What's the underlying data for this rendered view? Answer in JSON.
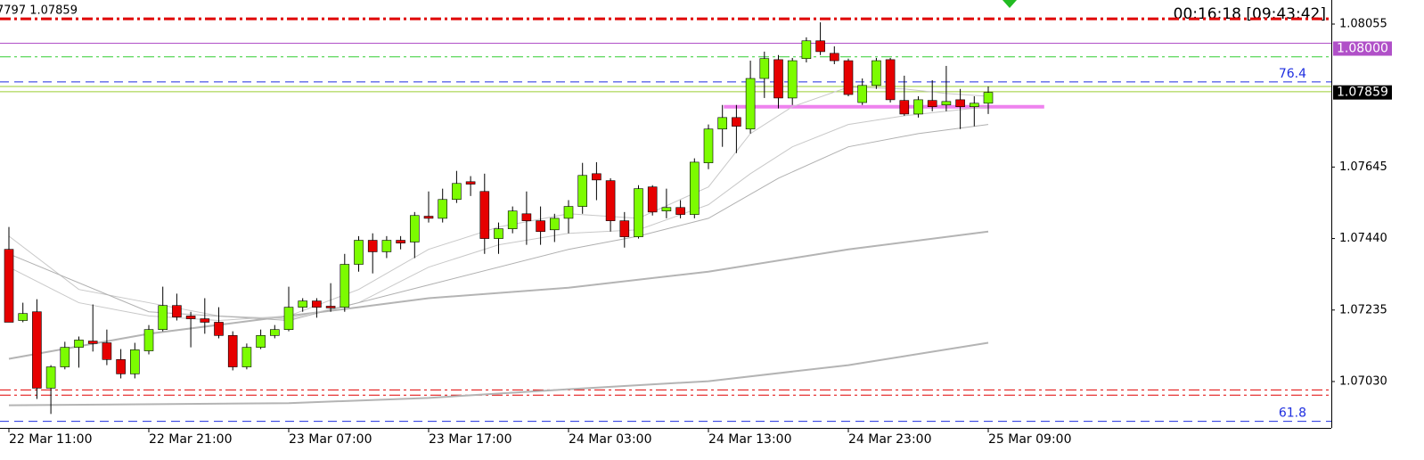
{
  "chart_data": {
    "type": "candlestick",
    "header": "7797 1.07859",
    "clock": "00:16:18 [09:43:42]",
    "categories": [
      "22 Mar 11:00",
      null,
      null,
      null,
      null,
      null,
      null,
      null,
      null,
      null,
      "22 Mar 21:00",
      null,
      null,
      null,
      null,
      null,
      null,
      null,
      null,
      null,
      "23 Mar 07:00",
      null,
      null,
      null,
      null,
      null,
      null,
      null,
      null,
      null,
      "23 Mar 17:00",
      null,
      null,
      null,
      null,
      null,
      null,
      null,
      null,
      null,
      "24 Mar 03:00",
      null,
      null,
      null,
      null,
      null,
      null,
      null,
      null,
      null,
      "24 Mar 13:00",
      null,
      null,
      null,
      null,
      null,
      null,
      null,
      null,
      null,
      "24 Mar 23:00",
      null,
      null,
      null,
      null,
      null,
      null,
      null,
      null,
      null,
      "25 Mar 09:00"
    ],
    "open": [
      1.07409,
      1.07205,
      1.0723,
      1.07011,
      1.07072,
      1.07128,
      1.07146,
      1.07141,
      1.07093,
      1.07052,
      1.07118,
      1.07179,
      1.07248,
      1.07218,
      1.0721,
      1.072,
      1.07162,
      1.07072,
      1.07128,
      1.07162,
      1.07179,
      1.07243,
      1.07261,
      1.07246,
      1.07243,
      1.07366,
      1.07435,
      1.07402,
      1.07435,
      1.0743,
      1.07504,
      1.07498,
      1.07552,
      1.07603,
      1.07575,
      1.0744,
      1.07468,
      1.07511,
      1.07491,
      1.07465,
      1.07498,
      1.07532,
      1.07626,
      1.07606,
      1.07491,
      1.07445,
      1.07588,
      1.07519,
      1.07529,
      1.07509,
      1.07657,
      1.07754,
      1.07787,
      1.07754,
      1.07899,
      1.07953,
      1.07843,
      1.07956,
      1.08007,
      1.07971,
      1.0795,
      1.0783,
      1.07879,
      1.07953,
      1.07836,
      1.07797,
      1.07836,
      1.07823,
      1.07838,
      1.07818,
      1.07828
    ],
    "high": [
      1.07473,
      1.07256,
      1.07266,
      1.07077,
      1.07144,
      1.07159,
      1.07251,
      1.07179,
      1.07123,
      1.07141,
      1.07192,
      1.07302,
      1.07282,
      1.0723,
      1.07269,
      1.07243,
      1.07174,
      1.07139,
      1.07179,
      1.07192,
      1.07302,
      1.07269,
      1.07269,
      1.07312,
      1.07396,
      1.07447,
      1.07455,
      1.07447,
      1.07447,
      1.07516,
      1.07575,
      1.07583,
      1.07634,
      1.07619,
      1.07626,
      1.07486,
      1.07532,
      1.07575,
      1.07532,
      1.07511,
      1.0755,
      1.07657,
      1.07659,
      1.07613,
      1.07516,
      1.07593,
      1.07593,
      1.07583,
      1.0755,
      1.0767,
      1.07767,
      1.07823,
      1.07823,
      1.0795,
      1.07976,
      1.07966,
      1.07958,
      1.08017,
      1.0806,
      1.07991,
      1.07956,
      1.07899,
      1.07958,
      1.07958,
      1.07907,
      1.07848,
      1.07894,
      1.07935,
      1.07869,
      1.07848,
      1.07876
    ],
    "low": [
      1.072,
      1.072,
      1.0698,
      1.06937,
      1.07065,
      1.0707,
      1.07116,
      1.07077,
      1.07039,
      1.07039,
      1.07108,
      1.07174,
      1.07205,
      1.07128,
      1.07167,
      1.07154,
      1.07062,
      1.07065,
      1.07123,
      1.07154,
      1.07174,
      1.0723,
      1.07213,
      1.0723,
      1.0723,
      1.07345,
      1.0734,
      1.07384,
      1.07409,
      1.07384,
      1.07486,
      1.07486,
      1.07542,
      1.07562,
      1.07396,
      1.07396,
      1.07455,
      1.07422,
      1.07422,
      1.0743,
      1.07455,
      1.07511,
      1.0755,
      1.0746,
      1.07414,
      1.0744,
      1.07506,
      1.07498,
      1.07498,
      1.07498,
      1.07639,
      1.07703,
      1.07685,
      1.07741,
      1.07843,
      1.07813,
      1.07823,
      1.07945,
      1.07966,
      1.0794,
      1.07848,
      1.07823,
      1.07869,
      1.0783,
      1.07792,
      1.07787,
      1.07805,
      1.07805,
      1.07754,
      1.07762,
      1.07797
    ],
    "close": [
      1.072,
      1.07225,
      1.07011,
      1.07072,
      1.07128,
      1.07149,
      1.07139,
      1.07093,
      1.07052,
      1.07121,
      1.07179,
      1.07248,
      1.07215,
      1.0721,
      1.072,
      1.07162,
      1.07072,
      1.07128,
      1.07162,
      1.07179,
      1.07243,
      1.07261,
      1.07243,
      1.07241,
      1.07366,
      1.07435,
      1.07402,
      1.07435,
      1.07427,
      1.07506,
      1.07498,
      1.07552,
      1.07598,
      1.07596,
      1.0744,
      1.07468,
      1.07519,
      1.07491,
      1.0746,
      1.07498,
      1.07532,
      1.07621,
      1.07608,
      1.07491,
      1.07445,
      1.07583,
      1.07516,
      1.07529,
      1.07509,
      1.07659,
      1.07754,
      1.07787,
      1.07762,
      1.07899,
      1.07956,
      1.07843,
      1.0795,
      1.08007,
      1.07976,
      1.0795,
      1.07853,
      1.07879,
      1.0795,
      1.07838,
      1.07797,
      1.07838,
      1.07818,
      1.07833,
      1.07818,
      1.07828,
      1.07859
    ],
    "up_color": "#7cfc00",
    "down_color": "#e60000",
    "lines": [
      {
        "color": "#b4b4b4",
        "width": 2,
        "x": [
          0,
          20,
          30,
          40,
          50,
          60,
          70
        ],
        "values": [
          1.06962,
          1.06968,
          1.06983,
          1.07008,
          1.07031,
          1.07077,
          1.07141
        ]
      },
      {
        "color": "#b4b4b4",
        "width": 2,
        "x": [
          0,
          10,
          20,
          25,
          30,
          40,
          50,
          60,
          70
        ],
        "values": [
          1.07095,
          1.07167,
          1.07218,
          1.07243,
          1.07269,
          1.07299,
          1.07345,
          1.07409,
          1.0746
        ]
      },
      {
        "color": "#c8c8c8",
        "width": 1,
        "x": [
          0,
          5,
          10,
          15,
          20,
          25,
          30,
          35,
          40,
          45,
          50,
          53,
          56,
          60,
          64,
          67,
          70
        ],
        "values": [
          1.07358,
          1.07256,
          1.07218,
          1.07205,
          1.07218,
          1.07294,
          1.07409,
          1.07473,
          1.07511,
          1.07498,
          1.07588,
          1.07741,
          1.07818,
          1.07874,
          1.07869,
          1.07856,
          1.07848
        ]
      },
      {
        "color": "#c8c8c8",
        "width": 1,
        "x": [
          0,
          5,
          10,
          15,
          20,
          25,
          30,
          35,
          40,
          45,
          50,
          53,
          56,
          60,
          64,
          67,
          70
        ],
        "values": [
          1.07447,
          1.07294,
          1.07256,
          1.07218,
          1.0721,
          1.07256,
          1.07358,
          1.07422,
          1.07455,
          1.07465,
          1.07537,
          1.07626,
          1.07703,
          1.07767,
          1.07792,
          1.07805,
          1.07818
        ]
      },
      {
        "color": "#b0b0b0",
        "width": 1,
        "x": [
          0,
          10,
          20,
          30,
          40,
          45,
          50,
          55,
          60,
          65,
          70
        ],
        "values": [
          1.07396,
          1.0723,
          1.07205,
          1.07307,
          1.07409,
          1.07447,
          1.07498,
          1.07613,
          1.07703,
          1.07741,
          1.07767
        ]
      }
    ],
    "levels": [
      {
        "value": 1.0807,
        "color": "#e00000",
        "style": "dashdot",
        "width": 3
      },
      {
        "value": 1.08,
        "color": "#b050c8",
        "style": "solid",
        "width": 1,
        "tag": "1.08000"
      },
      {
        "value": 1.07961,
        "color": "#32cd32",
        "style": "dashdot",
        "width": 1
      },
      {
        "value": 1.07889,
        "color": "#1e2ee0",
        "style": "dashed",
        "width": 1,
        "label": 76.4
      },
      {
        "value": 1.07876,
        "color": "#9acd32",
        "style": "solid",
        "width": 1
      },
      {
        "value": 1.07861,
        "color": "#9acd32",
        "style": "solid",
        "width": 1
      },
      {
        "value": 1.07818,
        "color": "#ee82ee",
        "style": "solid",
        "width": 4,
        "x": [
          51.1,
          74
        ]
      },
      {
        "value": 1.07006,
        "color": "#e00000",
        "style": "dashdot",
        "width": 1
      },
      {
        "value": 1.06991,
        "color": "#e00000",
        "style": "dashdot",
        "width": 1
      },
      {
        "value": 1.06916,
        "color": "#1e2ee0",
        "style": "dashed",
        "width": 1,
        "label": 61.8
      }
    ],
    "ylim": [
      1.06897,
      1.08124
    ],
    "yticks": [
      1.08055,
      1.07645,
      {
        "value": 1.0744,
        "label": "1.07440"
      },
      1.07235,
      {
        "value": 1.0703,
        "label": "1.07030"
      }
    ]
  }
}
